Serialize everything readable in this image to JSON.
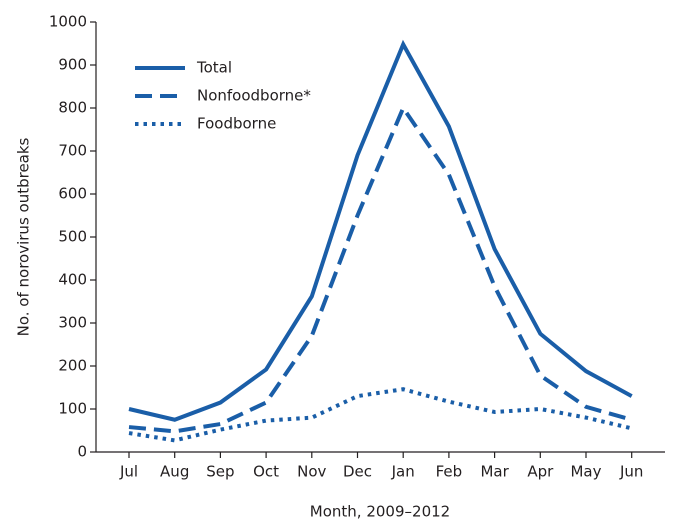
{
  "chart_data": {
    "type": "line",
    "x_label": "Month, 2009–2012",
    "y_label": "No. of norovirus outbreaks",
    "categories": [
      "Jul",
      "Aug",
      "Sep",
      "Oct",
      "Nov",
      "Dec",
      "Jan",
      "Feb",
      "Mar",
      "Apr",
      "May",
      "Jun"
    ],
    "series": [
      {
        "name": "Total",
        "color": "#1a5ea8",
        "dash": "solid",
        "values": [
          100,
          75,
          115,
          192,
          362,
          690,
          948,
          757,
          472,
          275,
          188,
          130
        ]
      },
      {
        "name": "Nonfoodborne*",
        "color": "#1a5ea8",
        "dash": "dashed",
        "values": [
          58,
          48,
          65,
          115,
          270,
          550,
          800,
          645,
          385,
          178,
          105,
          75
        ]
      },
      {
        "name": "Foodborne",
        "color": "#1a5ea8",
        "dash": "dotted",
        "values": [
          44,
          27,
          52,
          73,
          80,
          130,
          146,
          117,
          93,
          100,
          80,
          55
        ]
      }
    ],
    "ylim": [
      0,
      1000
    ],
    "yticks": [
      0,
      100,
      200,
      300,
      400,
      500,
      600,
      700,
      800,
      900,
      1000
    ],
    "legend": "upper-left",
    "grid": false
  }
}
